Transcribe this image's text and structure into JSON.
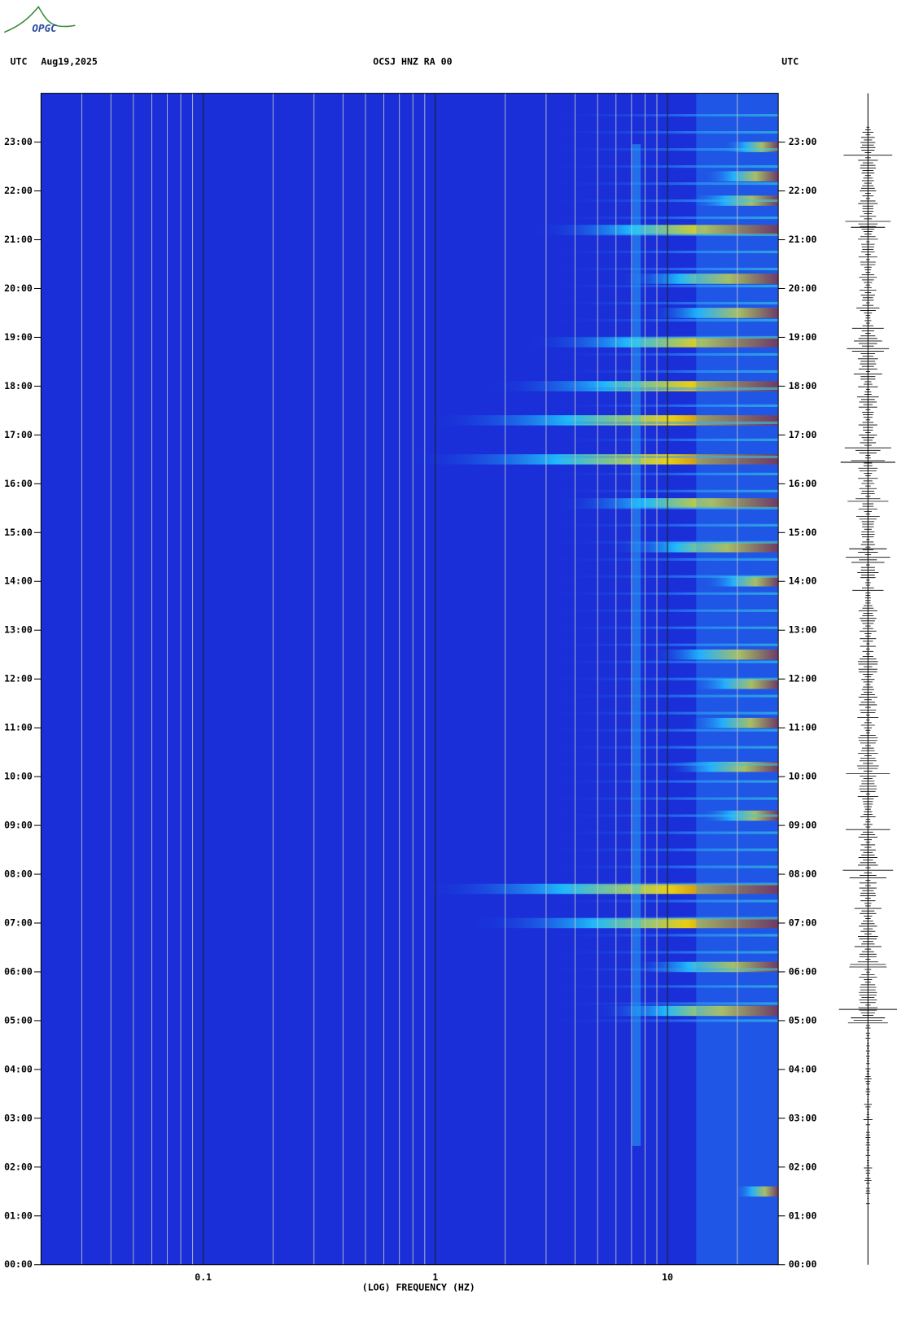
{
  "logo": "OPGC",
  "chart_data": {
    "type": "spectrogram",
    "title": "OCSJ HNZ RA 00",
    "date": "Aug19,2025",
    "time_zone_left": "UTC",
    "time_zone_right": "UTC",
    "xlabel": "(LOG) FREQUENCY (HZ)",
    "xscale": "log",
    "xlim": [
      0.02,
      30
    ],
    "xticks": [
      {
        "value": 0.1,
        "label": "0.1"
      },
      1,
      10
    ],
    "xminorticks": [
      0.03,
      0.04,
      0.05,
      0.06,
      0.07,
      0.08,
      0.09,
      0.2,
      0.3,
      0.4,
      0.5,
      0.6,
      0.7,
      0.8,
      0.9,
      2,
      3,
      4,
      5,
      6,
      7,
      8,
      9,
      20,
      30
    ],
    "ylim": [
      0,
      24
    ],
    "yticks": [
      {
        "value": 0,
        "label": "00:00"
      },
      {
        "value": 1,
        "label": "01:00"
      },
      {
        "value": 2,
        "label": "02:00"
      },
      {
        "value": 3,
        "label": "03:00"
      },
      {
        "value": 4,
        "label": "04:00"
      },
      {
        "value": 5,
        "label": "05:00"
      },
      {
        "value": 6,
        "label": "06:00"
      },
      {
        "value": 7,
        "label": "07:00"
      },
      {
        "value": 8,
        "label": "08:00"
      },
      {
        "value": 9,
        "label": "09:00"
      },
      {
        "value": 10,
        "label": "10:00"
      },
      {
        "value": 11,
        "label": "11:00"
      },
      {
        "value": 12,
        "label": "12:00"
      },
      {
        "value": 13,
        "label": "13:00"
      },
      {
        "value": 14,
        "label": "14:00"
      },
      {
        "value": 15,
        "label": "15:00"
      },
      {
        "value": 16,
        "label": "16:00"
      },
      {
        "value": 17,
        "label": "17:00"
      },
      {
        "value": 18,
        "label": "18:00"
      },
      {
        "value": 19,
        "label": "19:00"
      },
      {
        "value": 20,
        "label": "20:00"
      },
      {
        "value": 21,
        "label": "21:00"
      },
      {
        "value": 22,
        "label": "22:00"
      },
      {
        "value": 23,
        "label": "23:00"
      }
    ],
    "background_color": "#1a2fd8"
  }
}
